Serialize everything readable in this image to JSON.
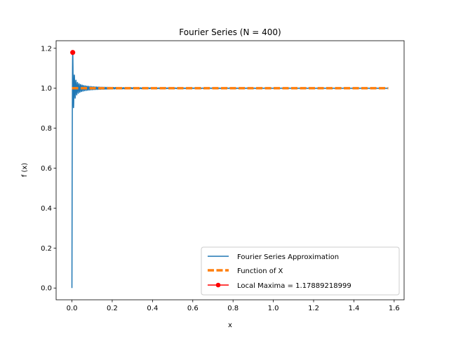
{
  "chart_data": {
    "type": "line",
    "title": "Fourier Series (N = 400)",
    "xlabel": "x",
    "ylabel": "f (x)",
    "xlim": [
      -0.0785,
      1.6493
    ],
    "ylim": [
      -0.0589,
      1.2378
    ],
    "xticks": [
      0.0,
      0.2,
      0.4,
      0.6,
      0.8,
      1.0,
      1.2,
      1.4,
      1.6
    ],
    "xtick_labels": [
      "0.0",
      "0.2",
      "0.4",
      "0.6",
      "0.8",
      "1.0",
      "1.2",
      "1.4",
      "1.6"
    ],
    "yticks": [
      0.0,
      0.2,
      0.4,
      0.6,
      0.8,
      1.0,
      1.2
    ],
    "ytick_labels": [
      "0.0",
      "0.2",
      "0.4",
      "0.6",
      "0.8",
      "1.0",
      "1.2"
    ],
    "grid": false,
    "legend_position": "lower-right",
    "series": [
      {
        "name": "Fourier Series Approximation",
        "style": "solid",
        "color": "#1f77b4",
        "x_range": [
          0.0,
          1.5708
        ],
        "description_value": "square-wave partial sum, rises 0 to 1 with Gibbs overshoot"
      },
      {
        "name": "Function of X",
        "style": "dashed",
        "color": "#ff7f0e",
        "x": [
          0.0,
          1.5708
        ],
        "y": [
          1.0,
          1.0
        ]
      },
      {
        "name": "Local Maxima = 1.17889218999",
        "style": "marker",
        "color": "#ff0000",
        "x": [
          0.0039
        ],
        "y": [
          1.17889218999
        ]
      }
    ]
  }
}
